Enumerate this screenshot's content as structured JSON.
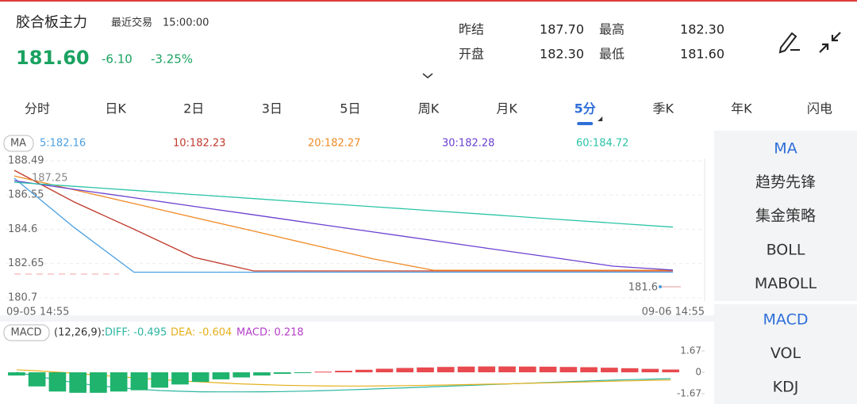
{
  "header": {
    "name": "胶合板主力",
    "last_trade_label": "最近交易",
    "time": "15:00:00",
    "price": "181.60",
    "change": "-6.10",
    "change_pct": "-3.25%"
  },
  "quote_stats": [
    {
      "label": "昨结",
      "value": "187.70"
    },
    {
      "label": "最高",
      "value": "182.30"
    },
    {
      "label": "开盘",
      "value": "182.30"
    },
    {
      "label": "最低",
      "value": "181.60"
    }
  ],
  "tabs": [
    "分时",
    "日K",
    "2日",
    "3日",
    "5日",
    "周K",
    "月K",
    "5分",
    "季K",
    "年K",
    "闪电"
  ],
  "active_tab": 7,
  "side_menu": {
    "main_indicators": [
      "MA",
      "趋势先锋",
      "集金策略",
      "BOLL",
      "MABOLL"
    ],
    "sub_indicators": [
      "MACD",
      "VOL",
      "KDJ"
    ],
    "active_color": "#2f6fd8"
  },
  "chart_data": [
    {
      "type": "line",
      "indicator": "MA",
      "categories": [
        "09-05 14:55",
        null,
        null,
        null,
        null,
        null,
        null,
        null,
        null,
        null,
        null,
        "09-06 14:55"
      ],
      "series": [
        {
          "name": "5:182.16",
          "color": "#4a9fe0",
          "values": [
            187.5,
            184.7,
            182.16,
            182.16,
            182.16,
            182.16,
            182.16,
            182.16,
            182.16,
            182.16,
            182.16,
            182.16
          ]
        },
        {
          "name": "10:182.23",
          "color": "#c0392b",
          "values": [
            187.95,
            186.15,
            184.6,
            183.0,
            182.23,
            182.23,
            182.23,
            182.23,
            182.23,
            182.23,
            182.23,
            182.23
          ]
        },
        {
          "name": "20:182.27",
          "color": "#f08a24",
          "values": [
            187.63,
            186.84,
            186.06,
            185.27,
            184.49,
            183.7,
            182.91,
            182.27,
            182.27,
            182.27,
            182.27,
            182.27
          ]
        },
        {
          "name": "30:182.28",
          "color": "#6a3fd0",
          "values": [
            187.36,
            186.87,
            186.39,
            185.9,
            185.42,
            184.93,
            184.44,
            183.96,
            183.47,
            182.99,
            182.5,
            182.28
          ]
        },
        {
          "name": "60:184.72",
          "color": "#2bc4a8",
          "values": [
            187.27,
            187.04,
            186.81,
            186.57,
            186.34,
            186.11,
            185.88,
            185.65,
            185.42,
            185.18,
            184.95,
            184.72
          ]
        }
      ],
      "ylim": [
        180.7,
        188.49
      ],
      "yticks": [
        188.49,
        186.55,
        184.6,
        182.65,
        180.7
      ],
      "grid": true,
      "annotations": [
        "187.25",
        "181.6"
      ]
    },
    {
      "type": "combo",
      "indicator": "MACD",
      "params": "(12,26,9):",
      "categories": [
        null,
        null,
        null,
        null,
        null,
        null,
        null,
        null,
        null,
        null,
        null,
        null,
        null,
        null,
        null,
        null,
        null,
        null,
        null,
        null,
        null,
        null,
        null,
        null,
        null,
        null,
        null,
        null,
        null,
        null,
        null,
        null,
        null
      ],
      "series": [
        {
          "name": "DIFF: -0.495",
          "kind": "line",
          "color": "#2bb5a0",
          "values": [
            0,
            -0.3,
            -0.6,
            -0.85,
            -1.05,
            -1.2,
            -1.32,
            -1.42,
            -1.48,
            -1.52,
            -1.53,
            -1.53,
            -1.52,
            -1.5,
            -1.47,
            -1.43,
            -1.38,
            -1.33,
            -1.27,
            -1.21,
            -1.15,
            -1.09,
            -1.03,
            -0.97,
            -0.91,
            -0.85,
            -0.79,
            -0.73,
            -0.67,
            -0.62,
            -0.57,
            -0.53,
            -0.495
          ]
        },
        {
          "name": "DEA: -0.604",
          "kind": "line",
          "color": "#e5b01c",
          "values": [
            0.2,
            0.12,
            0.02,
            -0.1,
            -0.22,
            -0.34,
            -0.45,
            -0.56,
            -0.66,
            -0.75,
            -0.83,
            -0.9,
            -0.96,
            -1.01,
            -1.04,
            -1.06,
            -1.07,
            -1.07,
            -1.06,
            -1.04,
            -1.02,
            -0.99,
            -0.96,
            -0.93,
            -0.9,
            -0.86,
            -0.82,
            -0.78,
            -0.74,
            -0.7,
            -0.67,
            -0.63,
            -0.604
          ]
        },
        {
          "name": "MACD: 0.218",
          "kind": "bar",
          "color": "#e84a4f",
          "negative_color": "#1fb36e",
          "legend_color": "#b53fc9",
          "values": [
            -0.25,
            -1.1,
            -1.5,
            -1.6,
            -1.6,
            -1.5,
            -1.4,
            -1.2,
            -0.95,
            -0.75,
            -0.55,
            -0.4,
            -0.25,
            -0.12,
            -0.05,
            0.05,
            0.12,
            0.2,
            0.28,
            0.34,
            0.38,
            0.42,
            0.45,
            0.46,
            0.46,
            0.45,
            0.44,
            0.42,
            0.4,
            0.36,
            0.32,
            0.27,
            0.218
          ]
        }
      ],
      "ylim": [
        -1.67,
        1.67
      ],
      "yticks": [
        1.67,
        0,
        -1.67
      ]
    }
  ]
}
